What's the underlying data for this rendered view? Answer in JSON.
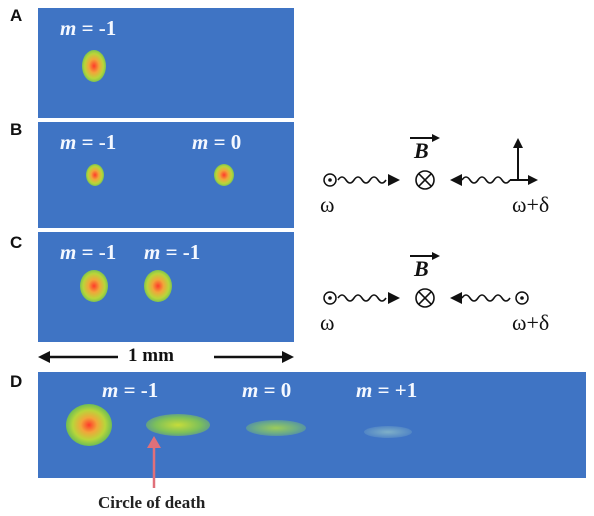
{
  "panels": {
    "A": {
      "letter": "A",
      "labels": [
        "m = -1"
      ]
    },
    "B": {
      "letter": "B",
      "labels": [
        "m = -1",
        "m = 0"
      ]
    },
    "C": {
      "letter": "C",
      "labels": [
        "m = -1",
        "m = -1"
      ]
    },
    "D": {
      "letter": "D",
      "labels": [
        "m = -1",
        "m = 0",
        "m = +1"
      ]
    }
  },
  "m_symbol": "m",
  "label_values": {
    "A0": " = -1",
    "B0": " = -1",
    "B1": " = 0",
    "C0": " = -1",
    "C1": " = -1",
    "D0": " = -1",
    "D1": " = 0",
    "D2": " = +1"
  },
  "diagram": {
    "field_symbol": "B",
    "omega_left": "ω",
    "omega_right": "ω+δ"
  },
  "scale_bar": {
    "label": "1 mm"
  },
  "annotation": {
    "label": "Circle of death",
    "arrow_color": "#e0707a"
  },
  "colors": {
    "panel_background": "#3f74c4",
    "label_text": "#f4f8ff"
  }
}
